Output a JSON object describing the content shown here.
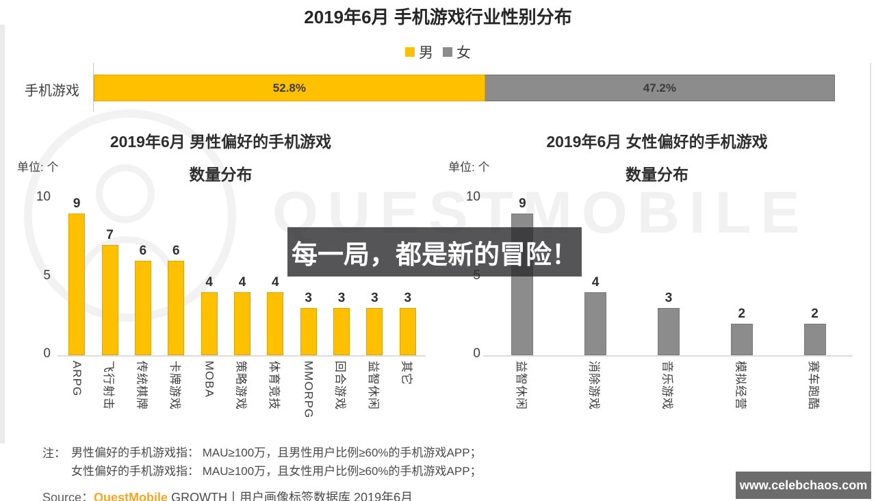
{
  "page": {
    "title": "2019年6月 手机游戏行业性别分布",
    "watermark_text": "QUESTMOBILE",
    "overlay_quote": "每一局，都是新的冒险！",
    "site_badge": "www.celebchaos.com"
  },
  "colors": {
    "male": "#FFC000",
    "female": "#8C8C8C",
    "overlay_box": "rgba(42,42,45,0.8)",
    "brand_orange": "#F5A623"
  },
  "legend": {
    "male_label": "男",
    "female_label": "女"
  },
  "gender_bar": {
    "row_label": "手机游戏",
    "male_pct": 52.8,
    "female_pct": 47.2,
    "male_pct_label": "52.8%",
    "female_pct_label": "47.2%"
  },
  "male_chart": {
    "title_line1": "2019年6月 男性偏好的手机游戏",
    "title_line2": "数量分布",
    "unit": "单位: 个",
    "tick_10": "10",
    "tick_5": "5",
    "tick_0": "0"
  },
  "female_chart": {
    "title_line1": "2019年6月 女性偏好的手机游戏",
    "title_line2": "数量分布",
    "unit": "单位: 个",
    "tick_10": "10",
    "tick_5": "5",
    "tick_0": "0"
  },
  "notes": {
    "prefix": "注：",
    "line1": "男性偏好的手机游戏指： MAU≥100万，且男性用户比例≥60%的手机游戏APP；",
    "line2": "女性偏好的手机游戏指： MAU≥100万，且女性用户比例≥60%的手机游戏APP；"
  },
  "source": {
    "label": "Source：",
    "brand": "QuestMobile",
    "rest": " GROWTH丨用户画像标签数据库 2019年6月"
  },
  "chart_data": [
    {
      "type": "bar",
      "subtype": "stacked-horizontal",
      "title": "2019年6月 手机游戏行业性别分布",
      "categories": [
        "手机游戏"
      ],
      "series": [
        {
          "name": "男",
          "values": [
            52.8
          ],
          "color": "#FFC000"
        },
        {
          "name": "女",
          "values": [
            47.2
          ],
          "color": "#8C8C8C"
        }
      ],
      "unit": "%",
      "legend_position": "top",
      "grid": false
    },
    {
      "type": "bar",
      "title": "2019年6月 男性偏好的手机游戏 数量分布",
      "ylabel": "单位: 个",
      "ylim": [
        0,
        10
      ],
      "y_ticks": [
        0,
        5,
        10
      ],
      "categories": [
        "ARPG",
        "飞行射击",
        "传统棋牌",
        "卡牌游戏",
        "MOBA",
        "策略游戏",
        "体育竞技",
        "MMORPG",
        "回合游戏",
        "益智休闲",
        "其它"
      ],
      "values": [
        9,
        7,
        6,
        6,
        4,
        4,
        4,
        3,
        3,
        3,
        3
      ],
      "bar_color": "#FFC000",
      "grid": false
    },
    {
      "type": "bar",
      "title": "2019年6月 女性偏好的手机游戏 数量分布",
      "ylabel": "单位: 个",
      "ylim": [
        0,
        10
      ],
      "y_ticks": [
        0,
        5,
        10
      ],
      "categories": [
        "益智休闲",
        "消除游戏",
        "音乐游戏",
        "模拟经营",
        "赛车跑酷"
      ],
      "values": [
        9,
        4,
        3,
        2,
        2
      ],
      "bar_color": "#8C8C8C",
      "grid": false
    }
  ]
}
